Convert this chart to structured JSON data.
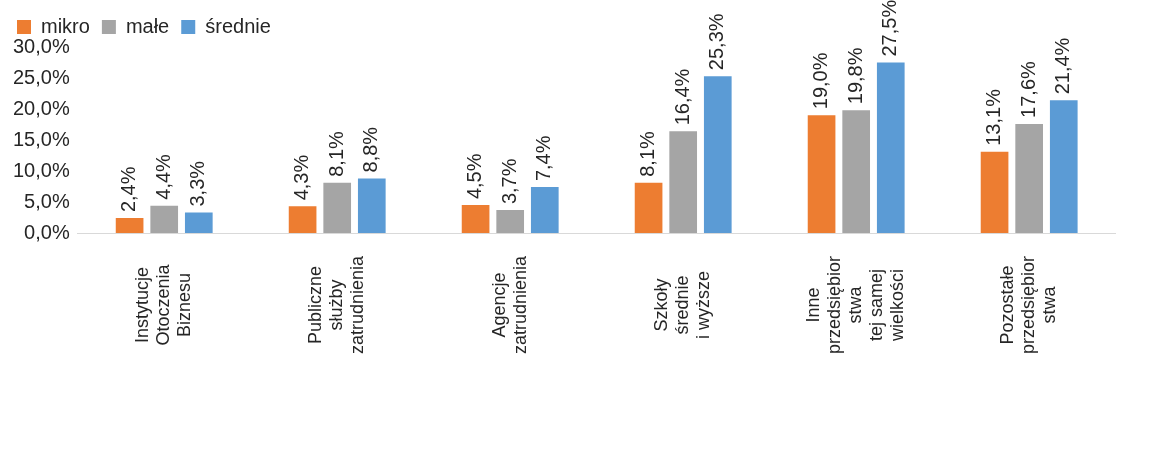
{
  "chart_data": {
    "type": "bar",
    "categories": [
      "Instytucje\nOtoczenia\nBiznesu",
      "Publiczne\nsłużby\nzatrudnienia",
      "Agencje\nzatrudnienia",
      "Szkoły\nśrednie\ni wyższe",
      "Inne\nprzedsiębior\nstwa\ntej samej\nwielkości",
      "Pozostałe\nprzedsiębior\nstwa"
    ],
    "series": [
      {
        "name": "mikro",
        "color": "#ed7d31",
        "values": [
          2.4,
          4.3,
          4.5,
          8.1,
          19.0,
          13.1
        ],
        "value_labels": [
          "2,4%",
          "4,3%",
          "4,5%",
          "8,1%",
          "19,0%",
          "13,1%"
        ]
      },
      {
        "name": "małe",
        "color": "#a5a5a5",
        "values": [
          4.4,
          8.1,
          3.7,
          16.4,
          19.8,
          17.6
        ],
        "value_labels": [
          "4,4%",
          "8,1%",
          "3,7%",
          "16,4%",
          "19,8%",
          "17,6%"
        ]
      },
      {
        "name": "średnie",
        "color": "#5b9bd5",
        "values": [
          3.3,
          8.8,
          7.4,
          25.3,
          27.5,
          21.4
        ],
        "value_labels": [
          "3,3%",
          "8,8%",
          "7,4%",
          "25,3%",
          "27,5%",
          "21,4%"
        ]
      }
    ],
    "ylim": [
      0,
      30
    ],
    "yticks": [
      {
        "value": 0,
        "label": "0,0%"
      },
      {
        "value": 5,
        "label": "5,0%"
      },
      {
        "value": 10,
        "label": "10,0%"
      },
      {
        "value": 15,
        "label": "15,0%"
      },
      {
        "value": 20,
        "label": "20,0%"
      },
      {
        "value": 25,
        "label": "25,0%"
      },
      {
        "value": 30,
        "label": "30,0%"
      }
    ],
    "grid": false,
    "legend": "top left"
  }
}
